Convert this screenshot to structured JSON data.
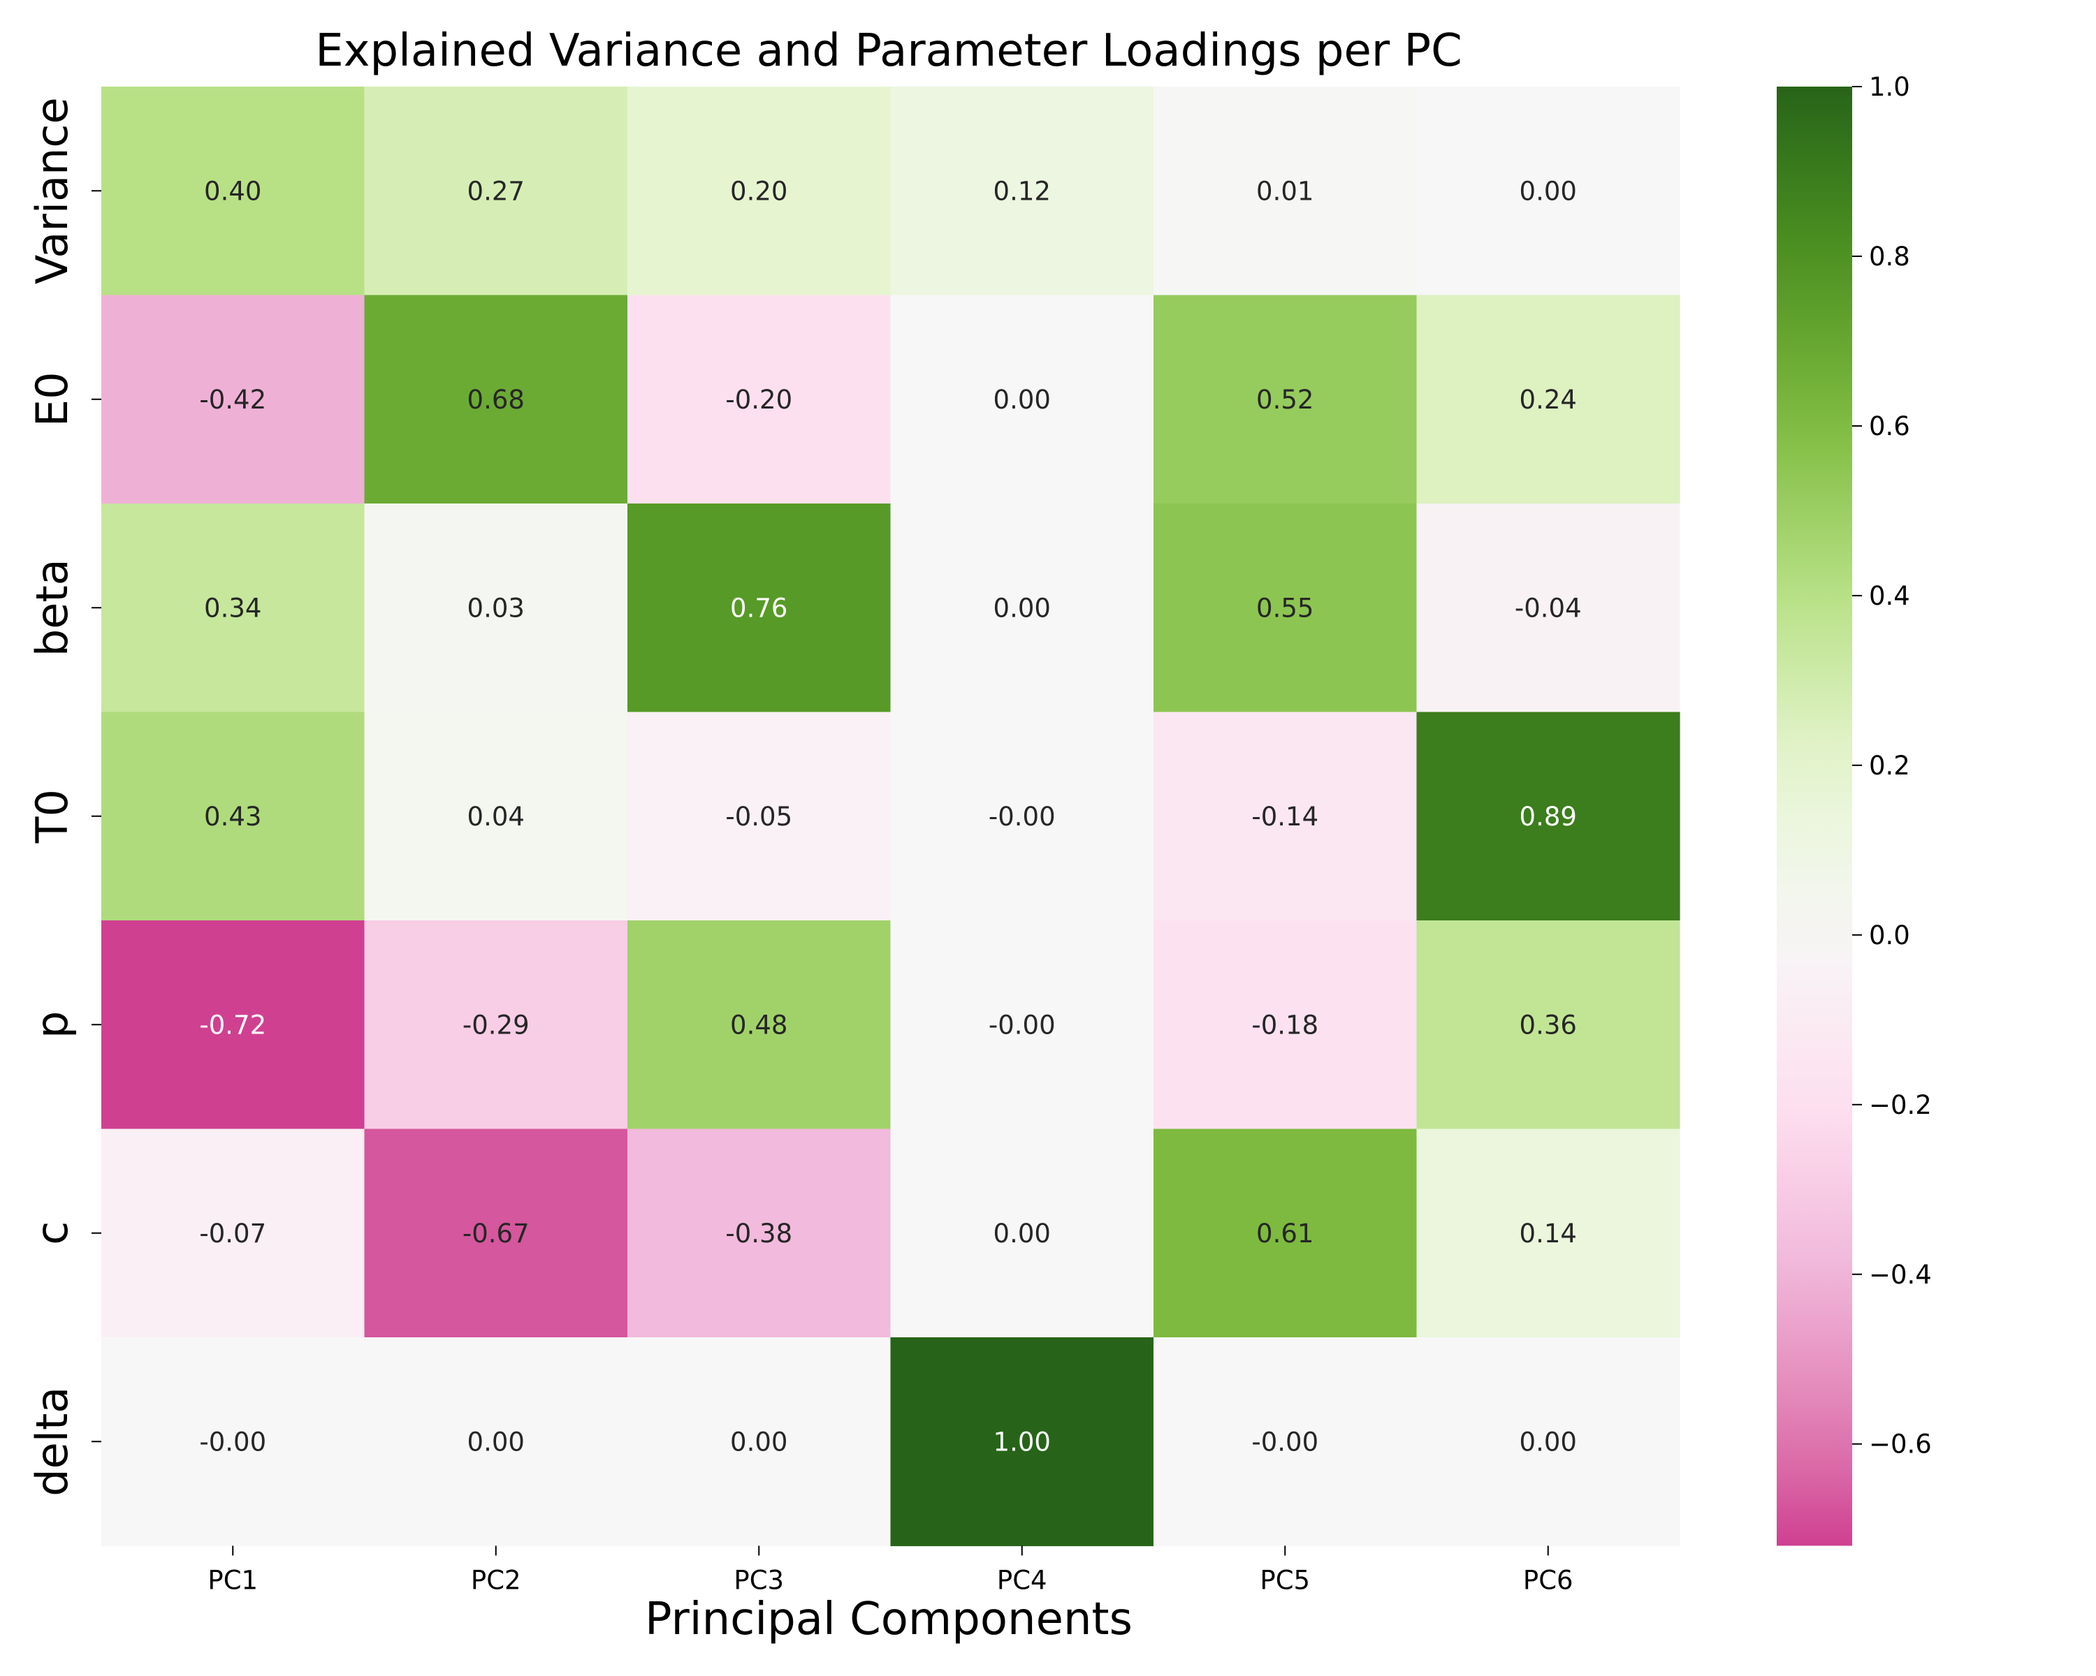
{
  "chart_data": {
    "type": "heatmap",
    "title": "Explained Variance and Parameter Loadings per PC",
    "xlabel": "Principal Components",
    "ylabel": "",
    "x_categories": [
      "PC1",
      "PC2",
      "PC3",
      "PC4",
      "PC5",
      "PC6"
    ],
    "y_categories": [
      "Variance",
      "E0",
      "beta",
      "T0",
      "p",
      "c",
      "delta"
    ],
    "values": [
      [
        0.4,
        0.27,
        0.2,
        0.12,
        0.01,
        0.0
      ],
      [
        -0.42,
        0.68,
        -0.2,
        0.0,
        0.52,
        0.24
      ],
      [
        0.34,
        0.03,
        0.76,
        0.0,
        0.55,
        -0.04
      ],
      [
        0.43,
        0.04,
        -0.05,
        -0.0,
        -0.14,
        0.89
      ],
      [
        -0.72,
        -0.29,
        0.48,
        -0.0,
        -0.18,
        0.36
      ],
      [
        -0.07,
        -0.67,
        -0.38,
        0.0,
        0.61,
        0.14
      ],
      [
        -0.0,
        0.0,
        0.0,
        1.0,
        -0.0,
        0.0
      ]
    ],
    "annotations": [
      [
        "0.40",
        "0.27",
        "0.20",
        "0.12",
        "0.01",
        "0.00"
      ],
      [
        "-0.42",
        "0.68",
        "-0.20",
        "0.00",
        "0.52",
        "0.24"
      ],
      [
        "0.34",
        "0.03",
        "0.76",
        "0.00",
        "0.55",
        "-0.04"
      ],
      [
        "0.43",
        "0.04",
        "-0.05",
        "-0.00",
        "-0.14",
        "0.89"
      ],
      [
        "-0.72",
        "-0.29",
        "0.48",
        "-0.00",
        "-0.18",
        "0.36"
      ],
      [
        "-0.07",
        "-0.67",
        "-0.38",
        "0.00",
        "0.61",
        "0.14"
      ],
      [
        "-0.00",
        "0.00",
        "0.00",
        "1.00",
        "-0.00",
        "0.00"
      ]
    ],
    "colormap": "PiYG",
    "color_range": [
      -0.72,
      1.0
    ],
    "colorbar_ticks": [
      1.0,
      0.8,
      0.6,
      0.4,
      0.2,
      0.0,
      -0.2,
      -0.4,
      -0.6
    ],
    "colorbar_tick_labels": [
      "1.0",
      "0.8",
      "0.6",
      "0.4",
      "0.2",
      "0.0",
      "−0.2",
      "−0.4",
      "−0.6"
    ],
    "grid": false,
    "legend": "colorbar-right"
  },
  "colors": {
    "text_dark": "#262626",
    "text_light": "#ffffff",
    "axis": "#000000",
    "background": "#ffffff"
  }
}
